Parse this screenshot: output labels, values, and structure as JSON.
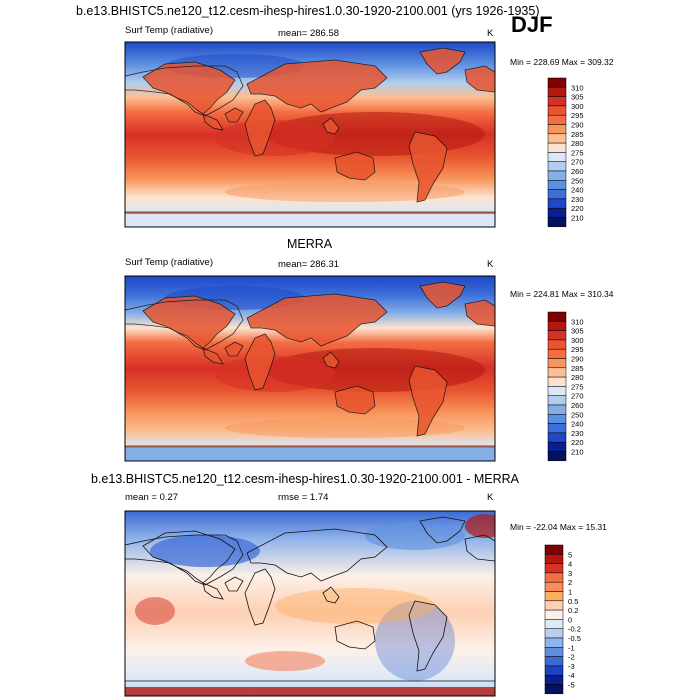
{
  "season": "DJF",
  "chart_data": [
    {
      "type": "heatmap",
      "title": "b.e13.BHISTC5.ne120_t12.cesm-ihesp-hires1.0.30-1920-2100.001 (yrs 1926-1935)",
      "left_label": "Surf Temp (radiative)",
      "center_label": "mean= 286.58",
      "units": "K",
      "minmax": "Min = 228.69 Max = 309.32",
      "colorbar_levels": [
        "310",
        "305",
        "300",
        "295",
        "290",
        "285",
        "280",
        "275",
        "270",
        "260",
        "250",
        "240",
        "230",
        "220",
        "210"
      ]
    },
    {
      "type": "heatmap",
      "title": "MERRA",
      "left_label": "Surf Temp (radiative)",
      "center_label": "mean= 286.31",
      "units": "K",
      "minmax": "Min = 224.81 Max = 310.34",
      "colorbar_levels": [
        "310",
        "305",
        "300",
        "295",
        "290",
        "285",
        "280",
        "275",
        "270",
        "260",
        "250",
        "240",
        "230",
        "220",
        "210"
      ]
    },
    {
      "type": "heatmap",
      "title": "b.e13.BHISTC5.ne120_t12.cesm-ihesp-hires1.0.30-1920-2100.001 - MERRA",
      "left_label": "mean =   0.27",
      "center_label": "rmse =   1.74",
      "units": "K",
      "minmax": "Min = -22.04 Max =  15.31",
      "colorbar_levels": [
        "5",
        "4",
        "3",
        "2",
        "1",
        "0.5",
        "0.2",
        "0",
        "-0.2",
        "-0.5",
        "-1",
        "-2",
        "-3",
        "-4",
        "-5"
      ]
    }
  ],
  "colors": {
    "temp_scale": [
      "#7f0000",
      "#b2180e",
      "#d73027",
      "#e8552f",
      "#f46d43",
      "#f8955c",
      "#fcbf92",
      "#fde3cf",
      "#dbe7f6",
      "#b2cdee",
      "#84aee6",
      "#5b8fe0",
      "#3c6fd8",
      "#1e48c8",
      "#0a1f8f",
      "#05105e"
    ],
    "diff_scale": [
      "#7f0000",
      "#b2180e",
      "#d73027",
      "#f46d43",
      "#fc8d59",
      "#fdae61",
      "#fdd0b4",
      "#fdf0e8",
      "#dfeaf7",
      "#b7d0f0",
      "#8fb3ea",
      "#5f8fe0",
      "#3b6ad6",
      "#1c44c0",
      "#0a1f8f",
      "#05105e"
    ]
  }
}
